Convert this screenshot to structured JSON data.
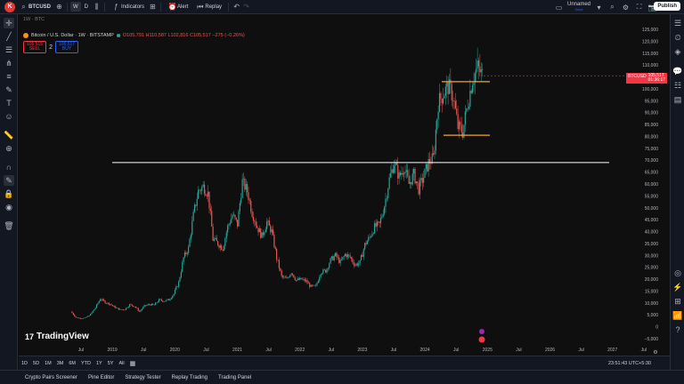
{
  "topbar": {
    "logo": "K",
    "symbol": "BTCUSD",
    "interval": "W",
    "interval_alt": "D",
    "indicators": "Indicators",
    "alert": "Alert",
    "replay": "Replay",
    "layout_name": "Unnamed",
    "layout_sub": "Save",
    "publish": "Publish"
  },
  "legend": {
    "top_line": "1W · BTC",
    "symbol_line": "Bitcoin / U.S. Dollar · 1W · BITSTAMP",
    "ohlc": "O105,791 H110,587 L102,816 C105,517 −275 (−0.26%)",
    "sell_price": "105,515",
    "sell_label": "SELL",
    "spread": "2",
    "buy_price": "105,517",
    "buy_label": "BUY"
  },
  "price_tag": {
    "symbol": "BTCUSD",
    "price": "105,517",
    "countdown": "01:36:17"
  },
  "watermark": "TradingView",
  "range_buttons": [
    "1D",
    "5D",
    "1M",
    "3M",
    "6M",
    "YTD",
    "1Y",
    "5Y",
    "All"
  ],
  "clock": "23:51:43 UTC+5:30",
  "bottom_tabs": [
    "Crypto Pairs Screener",
    "Pine Editor",
    "Strategy Tester",
    "Replay Trading",
    "Trading Panel"
  ],
  "chart_data": {
    "type": "candlestick",
    "colors": {
      "up": "#26a69a",
      "down": "#ef5350",
      "white_line": "#ffffff",
      "orange_line": "#f5a623"
    },
    "y_ticks": [
      "125,000",
      "120,000",
      "115,000",
      "110,000",
      "105,000",
      "100,000",
      "95,000",
      "90,000",
      "85,000",
      "80,000",
      "75,000",
      "70,000",
      "65,000",
      "60,000",
      "55,000",
      "50,000",
      "45,000",
      "40,000",
      "35,000",
      "30,000",
      "25,000",
      "20,000",
      "15,000",
      "10,000",
      "5,000",
      "0",
      "−5,000"
    ],
    "x_ticks": [
      "Jul",
      "2019",
      "Jul",
      "2020",
      "Jul",
      "2021",
      "Jul",
      "2022",
      "Jul",
      "2023",
      "Jul",
      "2024",
      "Jul",
      "2025",
      "Jul",
      "2026",
      "Jul",
      "2027",
      "Jul"
    ],
    "horizontal_lines": [
      {
        "price": 69000,
        "color": "#ffffff"
      },
      {
        "price": 103000,
        "color": "#f5a623"
      },
      {
        "price": 80500,
        "color": "#f5a623"
      }
    ],
    "series_close": [
      6400,
      4000,
      3500,
      3800,
      5200,
      8000,
      11800,
      10300,
      9500,
      8200,
      7200,
      7300,
      9300,
      8600,
      6400,
      8700,
      9400,
      9100,
      11300,
      10800,
      11400,
      13800,
      18700,
      29000,
      33000,
      47000,
      57000,
      59000,
      56000,
      37000,
      35000,
      33000,
      42000,
      47000,
      43000,
      61000,
      57000,
      48000,
      42000,
      38000,
      44000,
      40000,
      29000,
      21000,
      20000,
      23000,
      19500,
      20000,
      19200,
      16800,
      17000,
      23000,
      23500,
      28000,
      30000,
      27000,
      30400,
      29200,
      26000,
      27000,
      34500,
      37700,
      42000,
      43000,
      51000,
      62000,
      69000,
      63000,
      67000,
      60000,
      64000,
      58000,
      63000,
      69000,
      71000,
      94000,
      98000,
      101000,
      97000,
      84000,
      82000,
      94000,
      104000,
      109000,
      105500
    ]
  }
}
